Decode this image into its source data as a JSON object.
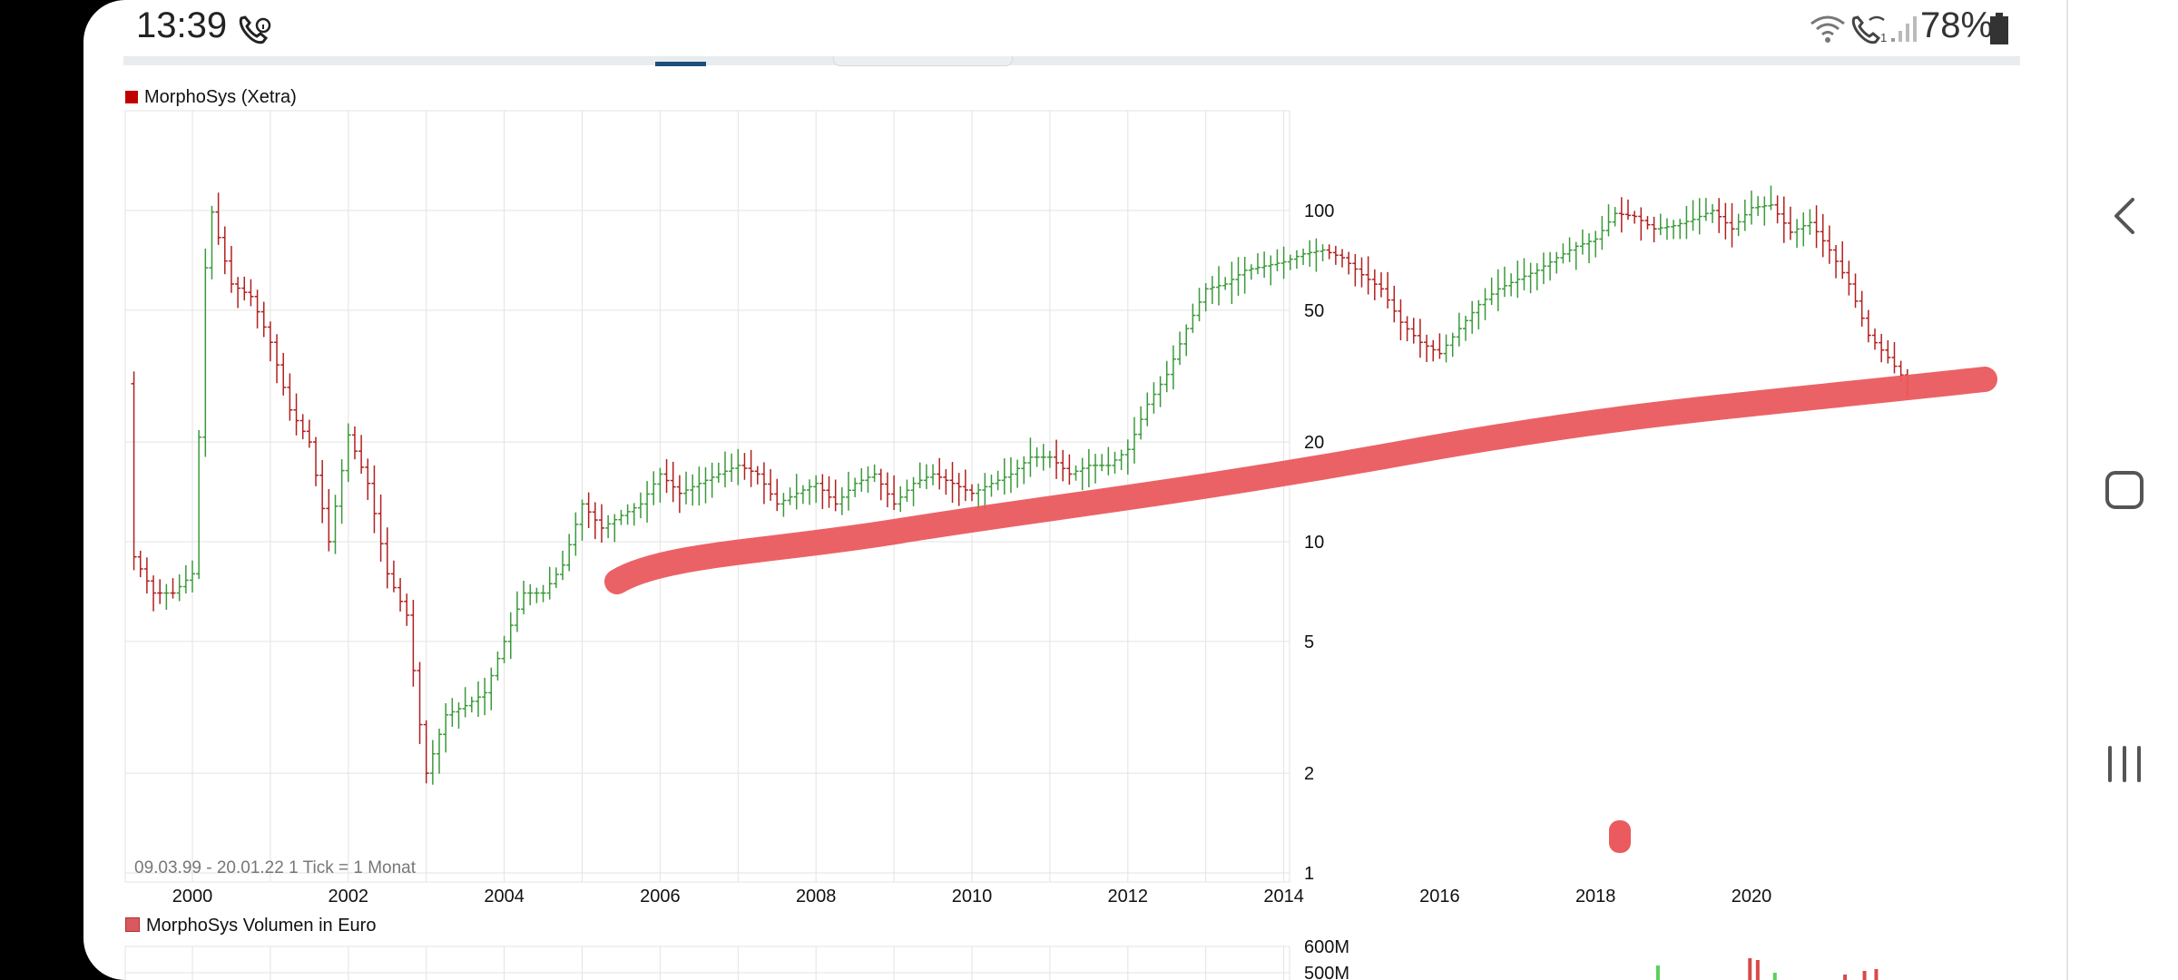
{
  "status_bar": {
    "time": "13:39",
    "battery": "78%"
  },
  "chart_data": [
    {
      "type": "line",
      "title": "MorphoSys (Xetra)",
      "series": [
        {
          "name": "MorphoSys (Xetra)",
          "x": [
            1999.25,
            1999.5,
            1999.75,
            2000.0,
            2000.1,
            2000.2,
            2000.35,
            2000.5,
            2000.75,
            2001.0,
            2001.25,
            2001.5,
            2001.75,
            2002.0,
            2002.25,
            2002.5,
            2002.75,
            2002.9,
            2003.0,
            2003.25,
            2003.5,
            2003.75,
            2004.0,
            2004.25,
            2004.5,
            2004.75,
            2005.0,
            2005.25,
            2005.5,
            2005.75,
            2006.0,
            2006.25,
            2006.5,
            2006.75,
            2007.0,
            2007.25,
            2007.5,
            2007.75,
            2008.0,
            2008.25,
            2008.5,
            2008.75,
            2009.0,
            2009.25,
            2009.5,
            2009.75,
            2010.0,
            2010.25,
            2010.5,
            2010.75,
            2011.0,
            2011.25,
            2011.5,
            2011.75,
            2012.0,
            2012.25,
            2012.5,
            2012.75,
            2013.0,
            2013.25,
            2013.5,
            2013.75,
            2014.0,
            2014.25,
            2014.5,
            2014.75,
            2015.0,
            2015.25,
            2015.5,
            2015.75,
            2016.0,
            2016.25,
            2016.5,
            2016.75,
            2017.0,
            2017.25,
            2017.5,
            2017.75,
            2018.0,
            2018.25,
            2018.5,
            2018.75,
            2019.0,
            2019.25,
            2019.5,
            2019.75,
            2020.0,
            2020.25,
            2020.5,
            2020.75,
            2021.0,
            2021.25,
            2021.5,
            2021.75,
            2022.0
          ],
          "y": [
            9,
            7,
            7,
            8,
            25,
            110,
            80,
            60,
            55,
            40,
            25,
            20,
            10,
            21,
            15,
            8,
            6,
            3,
            2,
            3,
            3.2,
            3.5,
            5,
            7,
            7,
            8.5,
            13,
            11,
            12,
            13,
            16,
            14,
            15,
            16,
            17,
            16,
            13,
            14,
            15,
            13,
            15,
            16,
            13,
            15,
            16,
            15,
            14,
            15,
            16,
            18,
            18,
            16,
            17,
            17,
            19,
            26,
            32,
            44,
            58,
            60,
            66,
            68,
            70,
            74,
            76,
            72,
            64,
            58,
            46,
            40,
            37,
            44,
            52,
            58,
            62,
            66,
            72,
            78,
            82,
            98,
            96,
            88,
            90,
            94,
            100,
            88,
            102,
            104,
            86,
            92,
            76,
            60,
            42,
            36,
            30
          ]
        }
      ],
      "xlim": [
        1999.1,
        2022.0
      ],
      "ylim": [
        1,
        150
      ],
      "yscale": "log",
      "xticks": [
        "2000",
        "2002",
        "2004",
        "2006",
        "2008",
        "2010",
        "2012",
        "2014",
        "2016",
        "2018",
        "2020"
      ],
      "yticks": [
        "100",
        "50",
        "20",
        "10",
        "5",
        "2",
        "1"
      ],
      "footnote": "09.03.99 - 20.01.22   1 Tick = 1 Monat",
      "colors": {
        "up": "#3a9a3a",
        "down": "#b21f1f",
        "legend": "#c00000",
        "grid": "#e3e3e3"
      },
      "annotation": {
        "type": "hand-drawn trend line",
        "color": "#ea5a5e"
      }
    },
    {
      "type": "bar",
      "title": "MorphoSys Volumen in Euro",
      "yticks": [
        "600M",
        "500M"
      ],
      "colors": {
        "legend": "#d9595e"
      }
    }
  ]
}
